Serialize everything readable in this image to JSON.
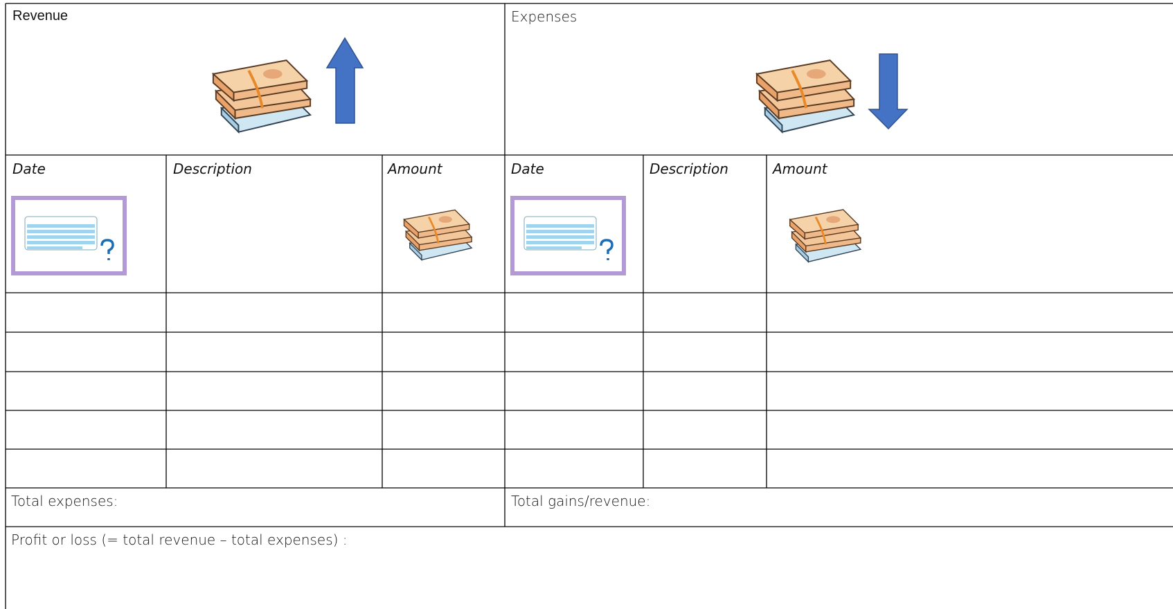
{
  "table": {
    "sections": [
      "Revenue",
      "Expenses"
    ],
    "columns": [
      "Date",
      "Description",
      "Amount",
      "Date",
      "Description",
      "Amount"
    ],
    "totals": [
      "Total expenses:",
      "Total gains/revenue:"
    ],
    "footer": "Profit or loss (= total revenue – total expenses) :"
  }
}
